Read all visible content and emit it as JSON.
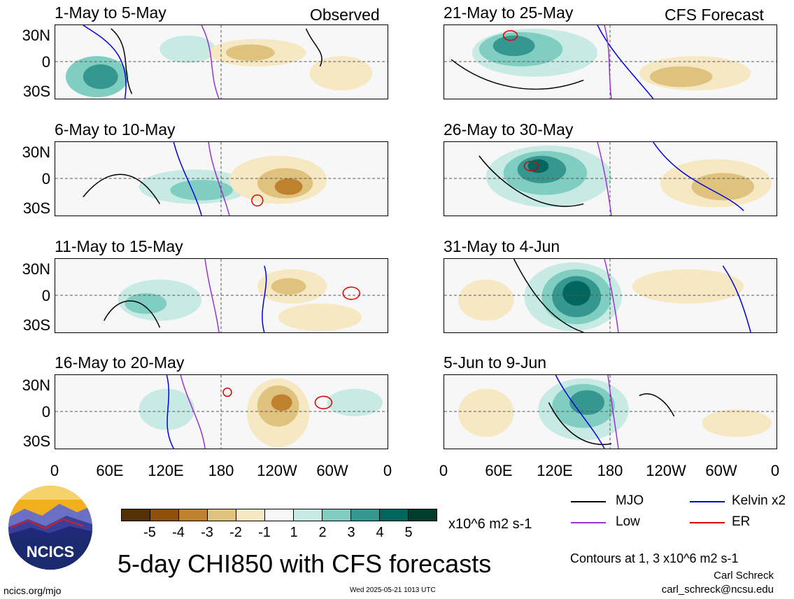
{
  "panels": [
    {
      "title": "1-May to 5-May",
      "label": "Observed"
    },
    {
      "title": "6-May to 10-May",
      "label": ""
    },
    {
      "title": "11-May to 15-May",
      "label": ""
    },
    {
      "title": "16-May to 20-May",
      "label": ""
    },
    {
      "title": "21-May to 25-May",
      "label": "CFS Forecast"
    },
    {
      "title": "26-May to 30-May",
      "label": ""
    },
    {
      "title": "31-May to 4-Jun",
      "label": ""
    },
    {
      "title": "5-Jun to 9-Jun",
      "label": ""
    }
  ],
  "lat_labels": [
    "30N",
    "0",
    "30S"
  ],
  "lon_labels": [
    "0",
    "60E",
    "120E",
    "180",
    "120W",
    "60W",
    "0"
  ],
  "colorbar": {
    "colors": [
      "#543005",
      "#8c510a",
      "#bf812d",
      "#dfc27d",
      "#f6e8c3",
      "#f7f7f7",
      "#c7eae5",
      "#80cdc1",
      "#35978f",
      "#01665e",
      "#003c30"
    ],
    "ticks": [
      "-5",
      "-4",
      "-3",
      "-2",
      "-1",
      "1",
      "2",
      "3",
      "4",
      "5"
    ],
    "units": "x10^6 m2 s-1"
  },
  "legend": [
    {
      "label": "MJO",
      "color": "#000000"
    },
    {
      "label": "Kelvin x2",
      "color": "#0000dd"
    },
    {
      "label": "Low",
      "color": "#9933cc"
    },
    {
      "label": "ER",
      "color": "#dd0000"
    }
  ],
  "main_title": "5-day CHI850 with CFS forecasts",
  "contours_note": "Contours at 1, 3 x10^6 m2 s-1",
  "logo_text": "NCICS",
  "author": "Carl Schreck",
  "email": "carl_schreck@ncsu.edu",
  "site": "ncics.org/mjo",
  "timestamp": "Wed 2025-05-21 1013 UTC"
}
